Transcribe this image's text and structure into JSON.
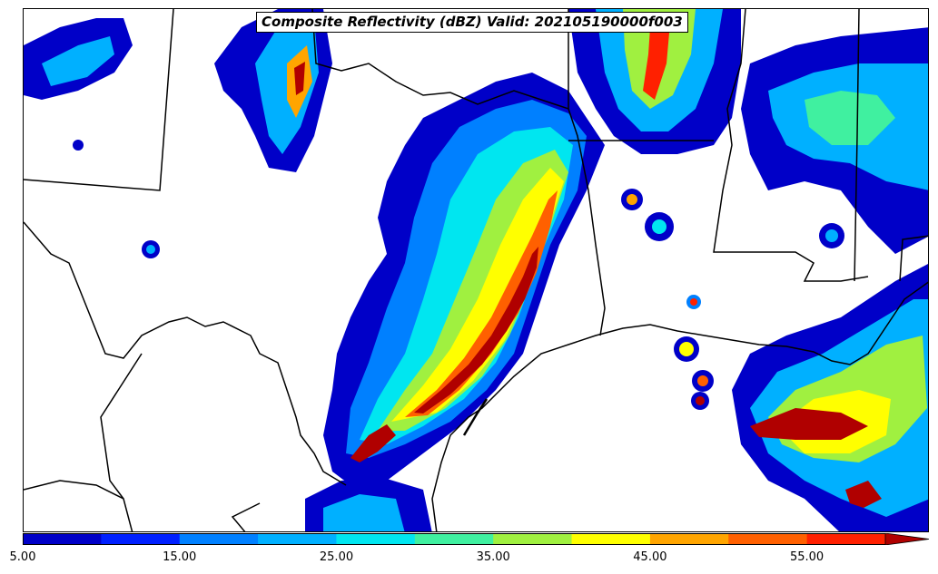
{
  "title": "Composite Reflectivity (dBZ) Valid: 202105190000f003",
  "colorbar": {
    "min": 5,
    "max": 60,
    "step": 5,
    "extend": "max",
    "colors": [
      "#0000c8",
      "#0020ff",
      "#0080ff",
      "#00b0ff",
      "#00e6f0",
      "#40f0a0",
      "#a0f040",
      "#ffff00",
      "#ffa500",
      "#ff6000",
      "#ff2000",
      "#b00000"
    ],
    "tick_values": [
      5,
      15,
      25,
      35,
      45,
      55
    ],
    "tick_labels": [
      "5.00",
      "15.00",
      "25.00",
      "35.00",
      "45.00",
      "55.00"
    ]
  }
}
